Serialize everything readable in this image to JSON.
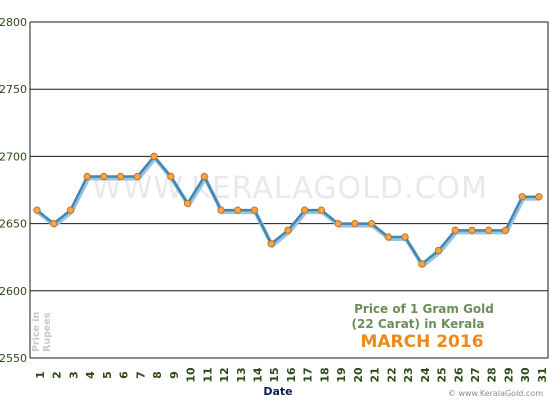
{
  "chart_data": {
    "type": "line",
    "title": {
      "line1": "Price of 1 Gram Gold",
      "line2": "(22 Carat) in Kerala",
      "line3": "MARCH 2016"
    },
    "xlabel": "Date",
    "ylabel_lines": [
      "Price in",
      "Rupees"
    ],
    "watermark": "WWW.KERALAGOLD.COM",
    "source": "© www.KeralaGold.com",
    "ylim": [
      2550,
      2800
    ],
    "yticks": [
      2550,
      2600,
      2650,
      2700,
      2750,
      2800
    ],
    "grid": "horizontal",
    "categories": [
      "1",
      "2",
      "3",
      "4",
      "5",
      "6",
      "7",
      "8",
      "9",
      "10",
      "11",
      "12",
      "13",
      "14",
      "15",
      "16",
      "17",
      "18",
      "19",
      "20",
      "21",
      "22",
      "23",
      "24",
      "25",
      "26",
      "27",
      "28",
      "29",
      "30",
      "31"
    ],
    "series": [
      {
        "values": [
          2660,
          2650,
          2660,
          2685,
          2685,
          2685,
          2685,
          2700,
          2685,
          2665,
          2685,
          2660,
          2660,
          2660,
          2635,
          2645,
          2660,
          2660,
          2650,
          2650,
          2650,
          2640,
          2640,
          2620,
          2630,
          2645,
          2645,
          2645,
          2645,
          2670,
          2670
        ]
      }
    ],
    "colors": {
      "line": "#3f88b3",
      "line_shadow": "#9dc3dc",
      "marker_fill": "#f6a64a",
      "marker_stroke": "#c46a12",
      "axis_text": "#2d4a1a",
      "xlabel": "#0c1d52",
      "title_text": "#6b8e5a",
      "month_text": "#ee8a1c",
      "ylabel_text": "#c9c9c9",
      "watermark": "#e9e9e9",
      "source_text": "#8a8a8a"
    }
  }
}
